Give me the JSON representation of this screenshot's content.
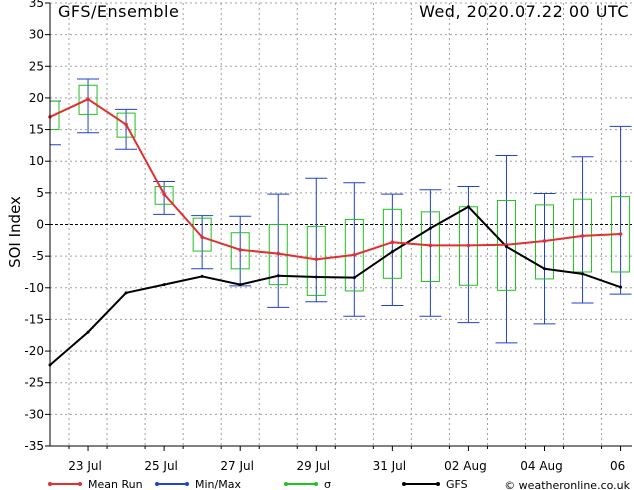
{
  "header": {
    "left_title": "GFS/Ensemble",
    "right_title": "Wed, 2020.07.22   00 UTC"
  },
  "credit": "© weatheronline.co.uk",
  "colors": {
    "mean": "#e03030",
    "minmax": "#2040d0",
    "sigma": "#20c020",
    "gfs": "#000000",
    "grid": "#a0a0a0"
  },
  "legend": [
    {
      "label": "Mean Run",
      "color": "#e03030"
    },
    {
      "label": "Min/Max",
      "color": "#2040d0"
    },
    {
      "label": "σ",
      "color": "#20c020"
    },
    {
      "label": "GFS",
      "color": "#000000"
    }
  ],
  "chart_data": {
    "type": "line",
    "ylabel": "SOI Index",
    "xlabel": "",
    "ylim": [
      -35,
      35
    ],
    "yticks": [
      -35,
      -30,
      -25,
      -20,
      -15,
      -10,
      -5,
      0,
      5,
      10,
      15,
      20,
      25,
      30,
      35
    ],
    "xlim": [
      0,
      15.3
    ],
    "x_tick_positions": [
      1,
      3,
      5,
      7,
      9,
      11,
      13,
      15
    ],
    "x_tick_labels": [
      "23 Jul",
      "25 Jul",
      "27 Jul",
      "29 Jul",
      "31 Jul",
      "02 Aug",
      "04 Aug",
      "06"
    ],
    "grid": true,
    "legend_position": "bottom",
    "x": [
      0,
      1,
      2,
      3,
      4,
      5,
      6,
      7,
      8,
      9,
      10,
      11,
      12,
      13,
      14,
      15
    ],
    "series": [
      {
        "name": "Mean Run",
        "values": [
          17.0,
          19.8,
          15.8,
          4.8,
          -2.0,
          -4.0,
          -4.6,
          -5.5,
          -4.8,
          -2.8,
          -3.3,
          -3.3,
          -3.2,
          -2.6,
          -1.8,
          -1.5
        ]
      },
      {
        "name": "GFS",
        "values": [
          -22.2,
          -17.0,
          -10.8,
          -9.5,
          -8.2,
          -9.5,
          -8.1,
          -8.3,
          -8.4,
          -4.3,
          -0.6,
          2.8,
          -3.5,
          -7.0,
          -7.8,
          -9.9
        ]
      },
      {
        "name": "Min/Max",
        "min": [
          12.6,
          14.5,
          11.9,
          1.6,
          -7.0,
          -9.7,
          -13.1,
          -12.2,
          -14.5,
          -12.8,
          -14.5,
          -15.5,
          -18.7,
          -15.7,
          -12.4,
          -11.0
        ],
        "max": [
          19.5,
          23.0,
          18.2,
          6.8,
          1.4,
          1.3,
          4.8,
          7.3,
          6.6,
          4.8,
          5.5,
          6.0,
          10.9,
          4.9,
          10.7,
          15.5
        ]
      },
      {
        "name": "σ",
        "low": [
          15.0,
          17.4,
          13.8,
          3.2,
          -4.2,
          -7.0,
          -9.5,
          -11.2,
          -10.5,
          -8.5,
          -9.0,
          -9.6,
          -10.4,
          -8.6,
          -7.5,
          -7.5
        ],
        "high": [
          19.5,
          22.0,
          17.6,
          6.0,
          1.0,
          -1.3,
          0.0,
          -0.3,
          0.8,
          2.4,
          2.0,
          2.8,
          3.8,
          3.1,
          4.0,
          4.4
        ]
      }
    ]
  }
}
